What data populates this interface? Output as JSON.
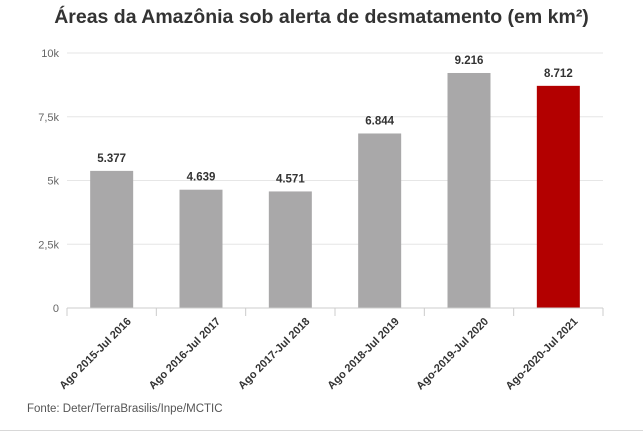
{
  "chart_data": {
    "type": "bar",
    "title": "Áreas da Amazônia sob alerta de desmatamento (em km²)",
    "categories": [
      "Ago 2015-Jul 2016",
      "Ago 2016-Jul 2017",
      "Ago 2017-Jul 2018",
      "Ago 2018-Jul 2019",
      "Ago-2019-Jul 2020",
      "Ago-2020-Jul 2021"
    ],
    "values": [
      5377,
      4639,
      4571,
      6844,
      9216,
      8712
    ],
    "value_labels": [
      "5.377",
      "4.639",
      "4.571",
      "6.844",
      "9.216",
      "8.712"
    ],
    "yticks": [
      0,
      2500,
      5000,
      7500,
      10000
    ],
    "ytick_labels": [
      "0",
      "2,5k",
      "5k",
      "7,5k",
      "10k"
    ],
    "ylim": [
      0,
      10000
    ],
    "grid": true,
    "xlabel": "",
    "ylabel": "",
    "colors": {
      "bar": "#a9a8a9",
      "highlight": "#b30000",
      "grid": "#e6e6e6",
      "axis": "#cccccc",
      "label": "#333333"
    },
    "highlight_index": 5,
    "source": "Fonte: Deter/TerraBrasilis/Inpe/MCTIC"
  }
}
